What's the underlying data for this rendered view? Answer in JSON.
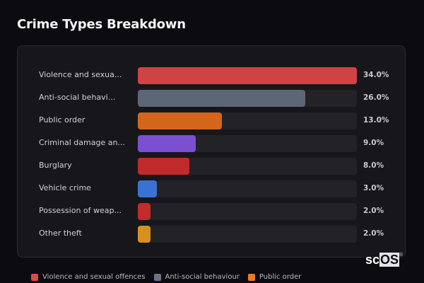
{
  "header": {
    "title": "Crime Types Breakdown"
  },
  "chart_data": {
    "type": "bar",
    "orientation": "horizontal",
    "title": "Crime Types Breakdown",
    "categories": [
      "Violence and sexual offences",
      "Anti-social behaviour",
      "Public order",
      "Criminal damage and arson",
      "Burglary",
      "Vehicle crime",
      "Possession of weapons",
      "Other theft"
    ],
    "display_labels": [
      "Violence and sexua...",
      "Anti-social behavi...",
      "Public order",
      "Criminal damage an...",
      "Burglary",
      "Vehicle crime",
      "Possession of weap...",
      "Other theft"
    ],
    "values": [
      34.0,
      26.0,
      13.0,
      9.0,
      8.0,
      3.0,
      2.0,
      2.0
    ],
    "value_labels": [
      "34.0%",
      "26.0%",
      "13.0%",
      "9.0%",
      "8.0%",
      "3.0%",
      "2.0%",
      "2.0%"
    ],
    "colors": [
      "#d04244",
      "#5c6676",
      "#d4661c",
      "#7b4fd0",
      "#c02a2a",
      "#3a72d4",
      "#c42a2a",
      "#d8901c"
    ],
    "unit": "%",
    "xlim": [
      0,
      34
    ],
    "legend": {
      "position": "bottom",
      "entries": [
        {
          "label": "Violence and sexual offences",
          "color": "#e04848"
        },
        {
          "label": "Anti-social behaviour",
          "color": "#6a7488"
        },
        {
          "label": "Public order",
          "color": "#f07a20"
        }
      ]
    }
  },
  "branding": {
    "logo_prefix": "sc",
    "logo_box": "OS",
    "logo_mark": "®"
  }
}
